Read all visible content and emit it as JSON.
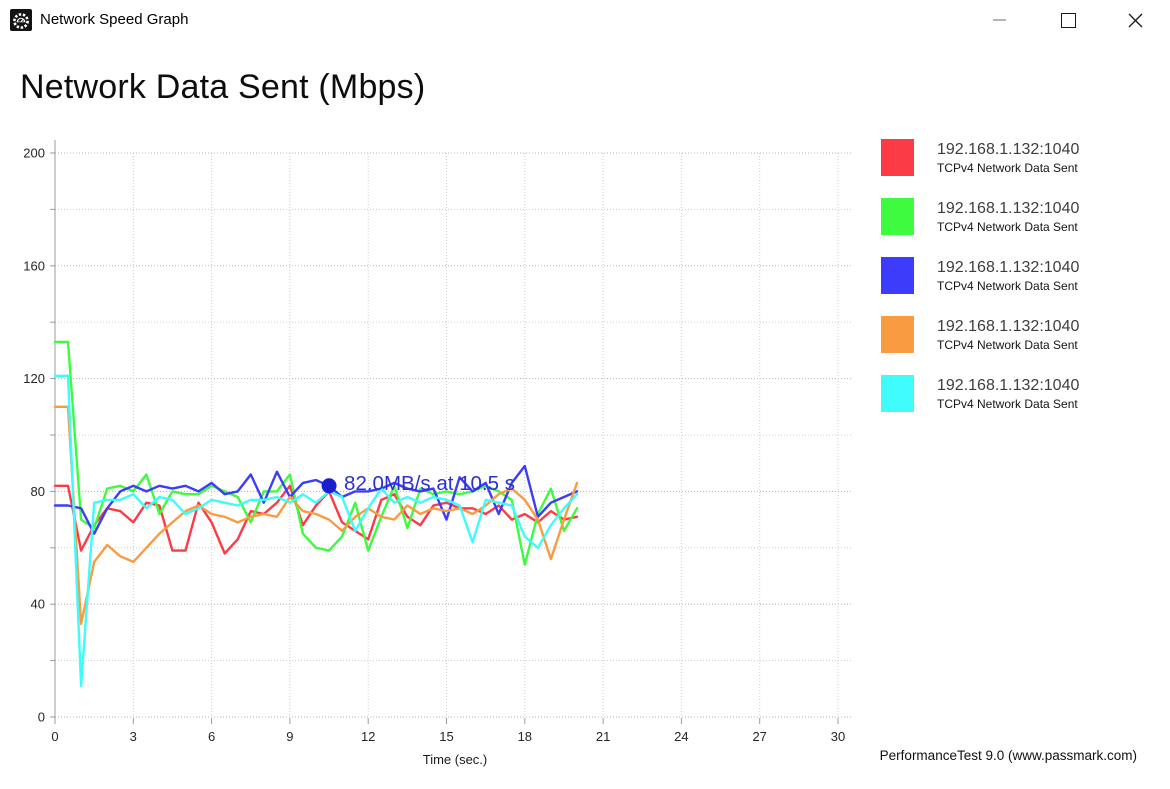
{
  "window": {
    "title": "Network Speed Graph",
    "controls": {
      "minimize": "minimize",
      "maximize": "maximize",
      "close": "close"
    }
  },
  "footer": "PerformanceTest 9.0 (www.passmark.com)",
  "colors": {
    "grid_major": "#b2b2b2",
    "grid_minor": "#cccccc",
    "axis": "#9c9c9c",
    "tick_text": "#262626"
  },
  "chart_data": {
    "type": "line",
    "title": "Network Data Sent (Mbps)",
    "xlabel": "Time (sec.)",
    "ylabel": "",
    "xlim": [
      0,
      30
    ],
    "ylim": [
      0,
      200
    ],
    "x_ticks": [
      0,
      3,
      6,
      9,
      12,
      15,
      18,
      21,
      24,
      27,
      30
    ],
    "y_ticks": [
      0,
      40,
      80,
      120,
      160,
      200
    ],
    "y_minor_step": 20,
    "grid": true,
    "legend_position": "right",
    "x_start": 0,
    "x_step": 0.5,
    "annotation": {
      "text": "82.0MB/s at 10.5 s",
      "x": 10.5,
      "y": 82,
      "color": "#2b2fd0",
      "marker_color": "#1a1ecf"
    },
    "series": [
      {
        "id": "red",
        "name": "192.168.1.132:1040",
        "subtitle": "TCPv4 Network Data Sent",
        "color": "#fb3b46",
        "values": [
          82,
          82,
          59,
          68,
          74,
          73,
          69,
          76,
          75,
          59,
          59,
          76,
          69,
          58,
          63,
          73,
          72,
          76,
          82,
          68,
          75,
          80,
          69,
          66,
          63,
          77,
          79,
          71,
          68,
          75,
          76,
          74,
          74,
          72,
          75,
          70,
          72,
          69,
          73,
          70,
          71
        ]
      },
      {
        "id": "green",
        "name": "192.168.1.132:1040",
        "subtitle": "TCPv4 Network Data Sent",
        "color": "#3ffb3f",
        "values": [
          133,
          133,
          70,
          67,
          81,
          82,
          80,
          86,
          72,
          80,
          79,
          79,
          82,
          80,
          78,
          69,
          80,
          80,
          86,
          65,
          60,
          59,
          64,
          76,
          59,
          71,
          82,
          67,
          81,
          79,
          80,
          79,
          80,
          82,
          80,
          77,
          54,
          72,
          81,
          66,
          74
        ]
      },
      {
        "id": "blue",
        "name": "192.168.1.132:1040",
        "subtitle": "TCPv4 Network Data Sent",
        "color": "#3c3cfa",
        "values": [
          75,
          75,
          74,
          65,
          74,
          80,
          82,
          80,
          82,
          81,
          82,
          80,
          83,
          79,
          80,
          86,
          76,
          87,
          78,
          83,
          84,
          82,
          78,
          80,
          80,
          81,
          83,
          81,
          80,
          81,
          70,
          85,
          80,
          83,
          72,
          83,
          89,
          71,
          76,
          78,
          80
        ]
      },
      {
        "id": "orange",
        "name": "192.168.1.132:1040",
        "subtitle": "TCPv4 Network Data Sent",
        "color": "#f99b41",
        "values": [
          110,
          110,
          33,
          55,
          61,
          57,
          55,
          60,
          65,
          69,
          73,
          75,
          72,
          71,
          69,
          71,
          72,
          71,
          78,
          73,
          72,
          70,
          66,
          71,
          74,
          71,
          70,
          75,
          72,
          74,
          73,
          74,
          72,
          75,
          79,
          81,
          77,
          70,
          56,
          70,
          83
        ]
      },
      {
        "id": "cyan",
        "name": "192.168.1.132:1040",
        "subtitle": "TCPv4 Network Data Sent",
        "color": "#3ffbfb",
        "values": [
          121,
          121,
          11,
          76,
          77,
          77,
          79,
          74,
          78,
          77,
          72,
          74,
          77,
          76,
          75,
          77,
          77,
          78,
          76,
          79,
          76,
          80,
          78,
          66,
          74,
          81,
          76,
          78,
          76,
          78,
          77,
          75,
          62,
          77,
          76,
          75,
          64,
          60,
          68,
          74,
          79
        ]
      }
    ]
  }
}
